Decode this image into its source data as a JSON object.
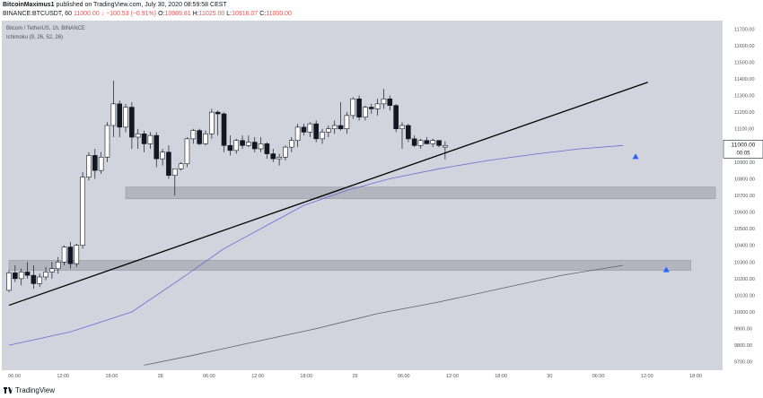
{
  "header": {
    "publisher_line": {
      "author": "BitcoinMaximus1",
      "text": "published on TradingView.com, July 30, 2020 08:59:58 CEST"
    },
    "symbol_line": {
      "symbol": "BINANCE:BTCUSDT, 60",
      "last": "11000.00",
      "change": "↓ −100.53 (−0.91%)",
      "o_label": "O:",
      "o": "10989.81",
      "h_label": "H:",
      "h": "11025.00",
      "l_label": "L:",
      "l": "10916.07",
      "c_label": "C:",
      "c": "11000.00"
    }
  },
  "legend": {
    "symbol": "Bitcoin / TetherUS, 1h, BINANCE",
    "indicator": "Ichimoku (9, 26, 52, 26)"
  },
  "price_marker": {
    "price": "11000.00",
    "countdown": "00:05"
  },
  "footer": {
    "brand": "TradingView"
  },
  "colors": {
    "plot_bg": "#d1d4dc",
    "candle_up": "#ffffff",
    "candle_down": "#131722",
    "ma_fast": "#6b6bd4",
    "ma_slow": "#5d606b",
    "trendline": "#000000",
    "zone": "#b2b5be",
    "arrow": "#2962ff"
  },
  "chart_data": {
    "type": "candlestick",
    "y_ticks": [
      "11700.00",
      "11600.00",
      "11500.00",
      "11400.00",
      "11300.00",
      "11200.00",
      "11100.00",
      "11000.00",
      "10900.00",
      "10800.00",
      "10700.00",
      "10600.00",
      "10500.00",
      "10400.00",
      "10300.00",
      "10200.00",
      "10100.00",
      "10000.00",
      "9900.00",
      "9800.00",
      "9700.00"
    ],
    "x_ticks": [
      "06:00",
      "12:00",
      "18:00",
      "28",
      "06:00",
      "12:00",
      "18:00",
      "29",
      "06:00",
      "12:00",
      "18:00",
      "30",
      "06:00",
      "12:00",
      "18:00"
    ],
    "ylim": [
      9650,
      11750
    ],
    "candles": [
      [
        10130,
        10250,
        10120,
        10235
      ],
      [
        10235,
        10280,
        10180,
        10200
      ],
      [
        10200,
        10260,
        10160,
        10240
      ],
      [
        10240,
        10300,
        10200,
        10220
      ],
      [
        10220,
        10280,
        10140,
        10170
      ],
      [
        10170,
        10230,
        10150,
        10210
      ],
      [
        10210,
        10270,
        10190,
        10240
      ],
      [
        10240,
        10300,
        10200,
        10260
      ],
      [
        10260,
        10330,
        10230,
        10300
      ],
      [
        10300,
        10400,
        10280,
        10390
      ],
      [
        10390,
        10420,
        10260,
        10290
      ],
      [
        10290,
        10410,
        10270,
        10400
      ],
      [
        10400,
        10840,
        10380,
        10810
      ],
      [
        10810,
        10960,
        10790,
        10940
      ],
      [
        10940,
        10980,
        10800,
        10850
      ],
      [
        10850,
        10960,
        10830,
        10930
      ],
      [
        10930,
        11140,
        10900,
        11120
      ],
      [
        11120,
        11390,
        11050,
        11250
      ],
      [
        11250,
        11270,
        11050,
        11110
      ],
      [
        11110,
        11250,
        11080,
        11230
      ],
      [
        11230,
        11260,
        10980,
        11050
      ],
      [
        11050,
        11100,
        10980,
        11070
      ],
      [
        11070,
        11090,
        10960,
        11010
      ],
      [
        11010,
        11080,
        10980,
        11060
      ],
      [
        11060,
        11080,
        10870,
        10920
      ],
      [
        10920,
        10980,
        10880,
        10960
      ],
      [
        10960,
        11000,
        10800,
        10820
      ],
      [
        10820,
        10860,
        10700,
        10860
      ],
      [
        10860,
        10900,
        10850,
        10890
      ],
      [
        10890,
        11050,
        10870,
        11040
      ],
      [
        11040,
        11100,
        11010,
        11090
      ],
      [
        11090,
        11100,
        11000,
        11010
      ],
      [
        11010,
        11090,
        11000,
        11070
      ],
      [
        11070,
        11220,
        11040,
        11200
      ],
      [
        11200,
        11210,
        11060,
        11190
      ],
      [
        11190,
        11200,
        10960,
        11000
      ],
      [
        11000,
        11060,
        10940,
        10970
      ],
      [
        10970,
        11040,
        10950,
        11030
      ],
      [
        11030,
        11060,
        10980,
        11000
      ],
      [
        11000,
        11060,
        10990,
        11020
      ],
      [
        11020,
        11050,
        10960,
        10980
      ],
      [
        10980,
        11050,
        10960,
        11010
      ],
      [
        11010,
        11020,
        10920,
        10950
      ],
      [
        10950,
        10980,
        10900,
        10920
      ],
      [
        10920,
        10950,
        10880,
        10930
      ],
      [
        10930,
        11000,
        10910,
        10990
      ],
      [
        10990,
        11050,
        10960,
        11030
      ],
      [
        11030,
        11130,
        10990,
        11110
      ],
      [
        11110,
        11130,
        11060,
        11080
      ],
      [
        11080,
        11140,
        11050,
        11130
      ],
      [
        11130,
        11150,
        11020,
        11040
      ],
      [
        11040,
        11100,
        11010,
        11080
      ],
      [
        11080,
        11120,
        11050,
        11100
      ],
      [
        11100,
        11150,
        11070,
        11120
      ],
      [
        11120,
        11260,
        11090,
        11100
      ],
      [
        11100,
        11200,
        11070,
        11180
      ],
      [
        11180,
        11290,
        11160,
        11280
      ],
      [
        11280,
        11300,
        11150,
        11170
      ],
      [
        11170,
        11240,
        11150,
        11230
      ],
      [
        11230,
        11250,
        11190,
        11220
      ],
      [
        11220,
        11280,
        11180,
        11250
      ],
      [
        11250,
        11340,
        11220,
        11280
      ],
      [
        11280,
        11300,
        11210,
        11240
      ],
      [
        11240,
        11250,
        11080,
        11100
      ],
      [
        11100,
        11140,
        10980,
        11120
      ],
      [
        11120,
        11130,
        11020,
        11040
      ],
      [
        11040,
        11060,
        10990,
        11000
      ],
      [
        11000,
        11040,
        10980,
        11030
      ],
      [
        11030,
        11050,
        11010,
        11010
      ],
      [
        11010,
        11040,
        10990,
        11030
      ],
      [
        11030,
        11030,
        10990,
        11000
      ],
      [
        10990,
        11025,
        10916,
        11000
      ]
    ],
    "ma_fast": [
      [
        0,
        9800
      ],
      [
        10,
        9880
      ],
      [
        20,
        10000
      ],
      [
        28,
        10200
      ],
      [
        35,
        10380
      ],
      [
        42,
        10520
      ],
      [
        48,
        10640
      ],
      [
        55,
        10730
      ],
      [
        62,
        10800
      ],
      [
        70,
        10860
      ],
      [
        78,
        10910
      ],
      [
        86,
        10950
      ],
      [
        93,
        10980
      ],
      [
        100,
        11000
      ]
    ],
    "ma_slow": [
      [
        22,
        9680
      ],
      [
        30,
        9740
      ],
      [
        40,
        9820
      ],
      [
        50,
        9900
      ],
      [
        60,
        9990
      ],
      [
        70,
        10060
      ],
      [
        80,
        10140
      ],
      [
        90,
        10220
      ],
      [
        100,
        10280
      ]
    ],
    "trendline": [
      [
        0,
        10040
      ],
      [
        104,
        11380
      ]
    ],
    "zones": [
      {
        "x0": 19,
        "x1": 115,
        "y0": 10680,
        "y1": 10750
      },
      {
        "x0": 0,
        "x1": 111,
        "y0": 10250,
        "y1": 10310
      }
    ],
    "arrows": [
      {
        "x": 102,
        "y": 10935
      },
      {
        "x": 107,
        "y": 10255
      }
    ]
  }
}
